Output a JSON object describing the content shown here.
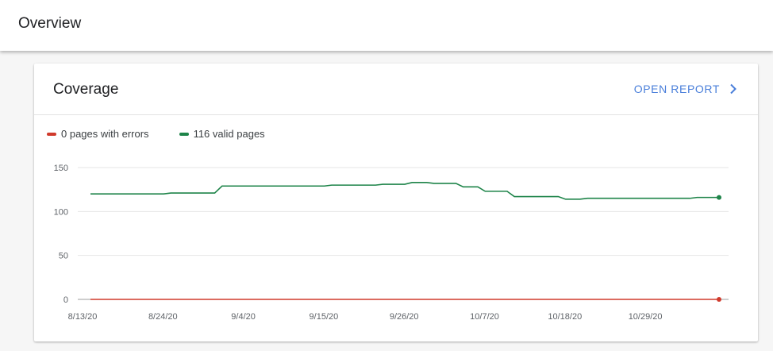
{
  "header": {
    "title": "Overview"
  },
  "card": {
    "title": "Coverage",
    "open_report_label": "OPEN REPORT"
  },
  "colors": {
    "errors": "#d03a2c",
    "valid": "#1e8449",
    "accent": "#4a7fda"
  },
  "icons": {
    "open_report": "chevron-right-icon"
  },
  "chart_data": {
    "type": "line",
    "legend_position": "top-left",
    "grid": true,
    "ylim": [
      0,
      150
    ],
    "yticks": [
      "0",
      "50",
      "100",
      "150"
    ],
    "xtick_labels": [
      "8/13/20",
      "8/24/20",
      "9/4/20",
      "9/15/20",
      "9/26/20",
      "10/7/20",
      "10/18/20",
      "10/29/20"
    ],
    "x": [
      "8/13/20",
      "8/14/20",
      "8/15/20",
      "8/16/20",
      "8/17/20",
      "8/18/20",
      "8/19/20",
      "8/20/20",
      "8/21/20",
      "8/22/20",
      "8/23/20",
      "8/24/20",
      "8/25/20",
      "8/26/20",
      "8/27/20",
      "8/28/20",
      "8/29/20",
      "8/30/20",
      "8/31/20",
      "9/1/20",
      "9/2/20",
      "9/3/20",
      "9/4/20",
      "9/5/20",
      "9/6/20",
      "9/7/20",
      "9/8/20",
      "9/9/20",
      "9/10/20",
      "9/11/20",
      "9/12/20",
      "9/13/20",
      "9/14/20",
      "9/15/20",
      "9/16/20",
      "9/17/20",
      "9/18/20",
      "9/19/20",
      "9/20/20",
      "9/21/20",
      "9/22/20",
      "9/23/20",
      "9/24/20",
      "9/25/20",
      "9/26/20",
      "9/27/20",
      "9/28/20",
      "9/29/20",
      "9/30/20",
      "10/1/20",
      "10/2/20",
      "10/3/20",
      "10/4/20",
      "10/5/20",
      "10/6/20",
      "10/7/20",
      "10/8/20",
      "10/9/20",
      "10/10/20",
      "10/11/20",
      "10/12/20",
      "10/13/20",
      "10/14/20",
      "10/15/20",
      "10/16/20",
      "10/17/20",
      "10/18/20",
      "10/19/20",
      "10/20/20",
      "10/21/20",
      "10/22/20",
      "10/23/20",
      "10/24/20",
      "10/25/20",
      "10/26/20",
      "10/27/20",
      "10/28/20",
      "10/29/20",
      "10/30/20",
      "10/31/20",
      "11/1/20",
      "11/2/20",
      "11/3/20",
      "11/4/20",
      "11/5/20",
      "11/6/20",
      "11/7/20"
    ],
    "series": [
      {
        "name": "0 pages with errors",
        "color": "#d03a2c",
        "values": [
          0,
          0,
          0,
          0,
          0,
          0,
          0,
          0,
          0,
          0,
          0,
          0,
          0,
          0,
          0,
          0,
          0,
          0,
          0,
          0,
          0,
          0,
          0,
          0,
          0,
          0,
          0,
          0,
          0,
          0,
          0,
          0,
          0,
          0,
          0,
          0,
          0,
          0,
          0,
          0,
          0,
          0,
          0,
          0,
          0,
          0,
          0,
          0,
          0,
          0,
          0,
          0,
          0,
          0,
          0,
          0,
          0,
          0,
          0,
          0,
          0,
          0,
          0,
          0,
          0,
          0,
          0,
          0,
          0,
          0,
          0,
          0,
          0,
          0,
          0,
          0,
          0,
          0,
          0,
          0,
          0,
          0,
          0,
          0,
          0,
          0,
          0
        ]
      },
      {
        "name": "116 valid pages",
        "color": "#1e8449",
        "values": [
          120,
          120,
          120,
          120,
          120,
          120,
          120,
          120,
          120,
          120,
          120,
          121,
          121,
          121,
          121,
          121,
          121,
          121,
          129,
          129,
          129,
          129,
          129,
          129,
          129,
          129,
          129,
          129,
          129,
          129,
          129,
          129,
          129,
          130,
          130,
          130,
          130,
          130,
          130,
          130,
          131,
          131,
          131,
          131,
          133,
          133,
          133,
          132,
          132,
          132,
          132,
          128,
          128,
          128,
          123,
          123,
          123,
          123,
          117,
          117,
          117,
          117,
          117,
          117,
          117,
          114,
          114,
          114,
          115,
          115,
          115,
          115,
          115,
          115,
          115,
          115,
          115,
          115,
          115,
          115,
          115,
          115,
          115,
          116,
          116,
          116,
          116
        ]
      }
    ]
  }
}
